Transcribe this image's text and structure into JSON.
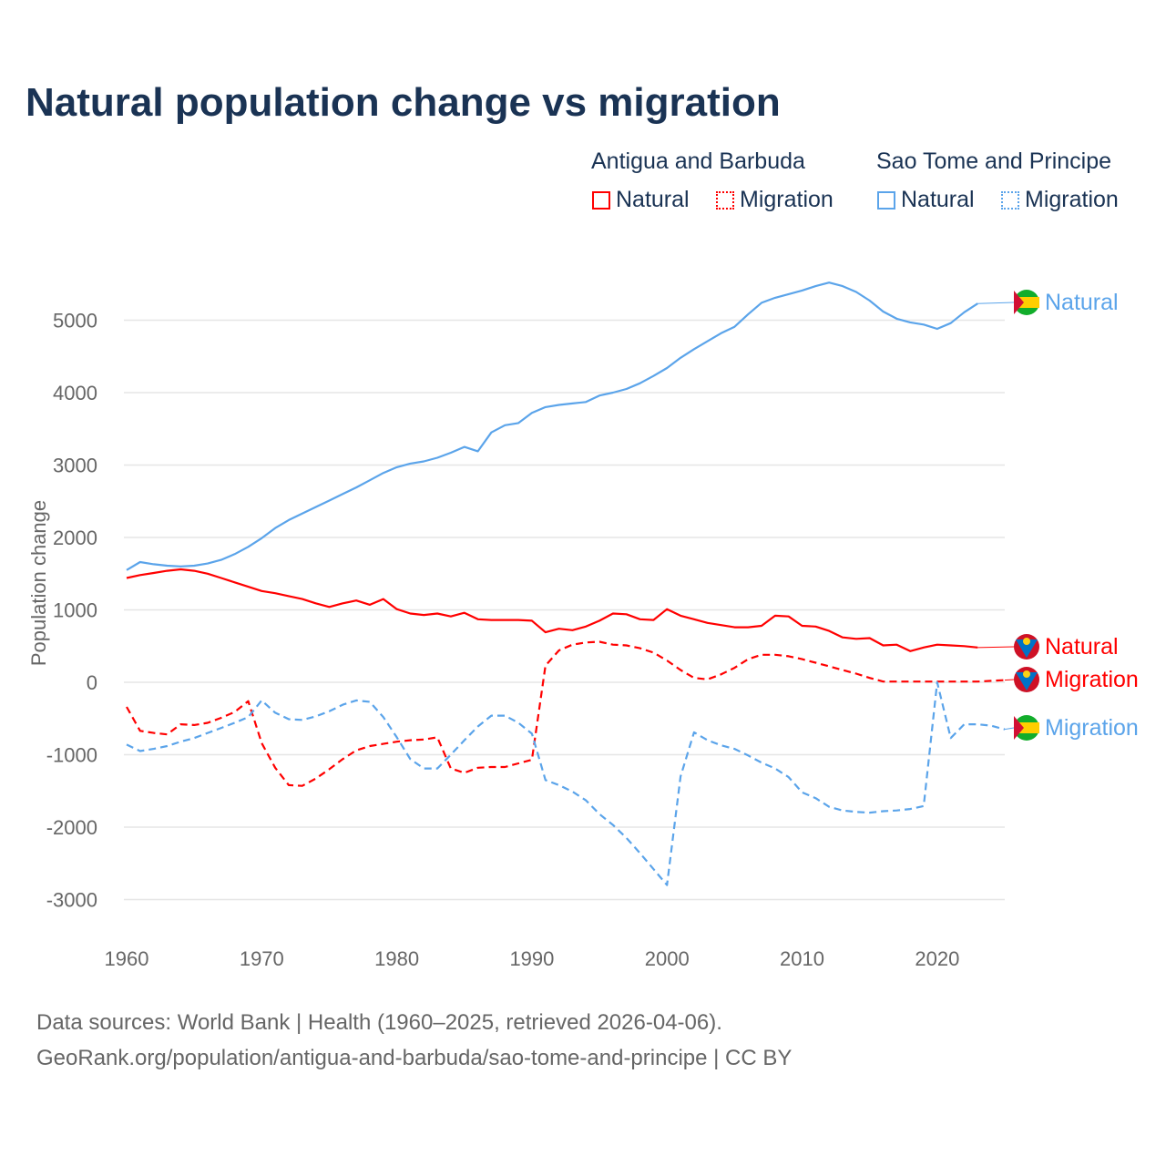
{
  "title": "Natural population change vs migration",
  "legend": {
    "groups": [
      {
        "name": "Antigua and Barbuda",
        "items": [
          "Natural",
          "Migration"
        ],
        "color": "#ff0000"
      },
      {
        "name": "Sao Tome and Principe",
        "items": [
          "Natural",
          "Migration"
        ],
        "color": "#5ba4ea"
      }
    ]
  },
  "footer": {
    "line1": "Data sources: World Bank | Health (1960–2025, retrieved 2026-04-06).",
    "line2": "GeoRank.org/population/antigua-and-barbuda/sao-tome-and-principe | CC BY"
  },
  "chart_data": {
    "type": "line",
    "title": "Natural population change vs migration",
    "xlabel": "",
    "ylabel": "Population change",
    "xlim": [
      1960,
      2025
    ],
    "ylim": [
      -3000,
      5500
    ],
    "xticks": [
      1960,
      1970,
      1980,
      1990,
      2000,
      2010,
      2020
    ],
    "yticks": [
      -3000,
      -2000,
      -1000,
      0,
      1000,
      2000,
      3000,
      4000,
      5000
    ],
    "grid": true,
    "x_start": 1960,
    "series": [
      {
        "name": "Antigua and Barbuda Natural",
        "label": "Natural",
        "color": "#ff0000",
        "dash": false,
        "values": [
          1440,
          1480,
          1510,
          1540,
          1560,
          1540,
          1500,
          1440,
          1380,
          1320,
          1260,
          1230,
          1190,
          1150,
          1090,
          1040,
          1090,
          1130,
          1070,
          1150,
          1010,
          950,
          930,
          950,
          910,
          960,
          870,
          860,
          860,
          860,
          850,
          690,
          740,
          720,
          770,
          850,
          950,
          940,
          870,
          860,
          1010,
          920,
          870,
          820,
          790,
          760,
          760,
          780,
          920,
          910,
          780,
          770,
          710,
          620,
          600,
          610,
          510,
          520,
          430,
          480,
          520,
          510,
          500,
          480,
          null,
          null
        ]
      },
      {
        "name": "Antigua and Barbuda Migration",
        "label": "Migration",
        "color": "#ff0000",
        "dash": true,
        "values": [
          -340,
          -670,
          -700,
          -720,
          -580,
          -590,
          -560,
          -490,
          -410,
          -260,
          -840,
          -1180,
          -1420,
          -1430,
          -1330,
          -1200,
          -1060,
          -940,
          -880,
          -850,
          -820,
          -800,
          -790,
          -760,
          -1190,
          -1250,
          -1180,
          -1170,
          -1170,
          -1120,
          -1070,
          230,
          440,
          520,
          550,
          560,
          520,
          510,
          470,
          410,
          300,
          170,
          60,
          40,
          110,
          200,
          320,
          380,
          380,
          360,
          320,
          270,
          220,
          170,
          120,
          60,
          10,
          10,
          10,
          10,
          10,
          10,
          10,
          10,
          20,
          30
        ]
      },
      {
        "name": "Sao Tome and Principe Natural",
        "label": "Natural",
        "color": "#5ba4ea",
        "dash": false,
        "values": [
          1550,
          1660,
          1630,
          1610,
          1600,
          1610,
          1640,
          1690,
          1770,
          1870,
          1990,
          2130,
          2240,
          2330,
          2420,
          2510,
          2600,
          2690,
          2790,
          2890,
          2970,
          3020,
          3050,
          3100,
          3170,
          3250,
          3190,
          3450,
          3550,
          3580,
          3720,
          3800,
          3830,
          3850,
          3870,
          3960,
          4000,
          4050,
          4130,
          4230,
          4340,
          4480,
          4600,
          4710,
          4820,
          4910,
          5080,
          5240,
          5310,
          5360,
          5410,
          5470,
          5520,
          5470,
          5390,
          5270,
          5120,
          5020,
          4970,
          4940,
          4880,
          4960,
          5110,
          5230,
          null,
          null
        ]
      },
      {
        "name": "Sao Tome and Principe Migration",
        "label": "Migration",
        "color": "#5ba4ea",
        "dash": true,
        "values": [
          -860,
          -950,
          -920,
          -880,
          -820,
          -770,
          -700,
          -630,
          -560,
          -480,
          -250,
          -420,
          -510,
          -520,
          -470,
          -400,
          -310,
          -250,
          -270,
          -480,
          -760,
          -1060,
          -1190,
          -1190,
          -1000,
          -800,
          -610,
          -460,
          -460,
          -560,
          -710,
          -1350,
          -1420,
          -1510,
          -1630,
          -1820,
          -1970,
          -2150,
          -2360,
          -2580,
          -2800,
          -1300,
          -690,
          -800,
          -870,
          -920,
          -1010,
          -1110,
          -1190,
          -1310,
          -1520,
          -1600,
          -1720,
          -1770,
          -1790,
          -1800,
          -1780,
          -1770,
          -1750,
          -1710,
          0,
          -770,
          -580,
          -580,
          -600,
          -650
        ]
      }
    ]
  }
}
